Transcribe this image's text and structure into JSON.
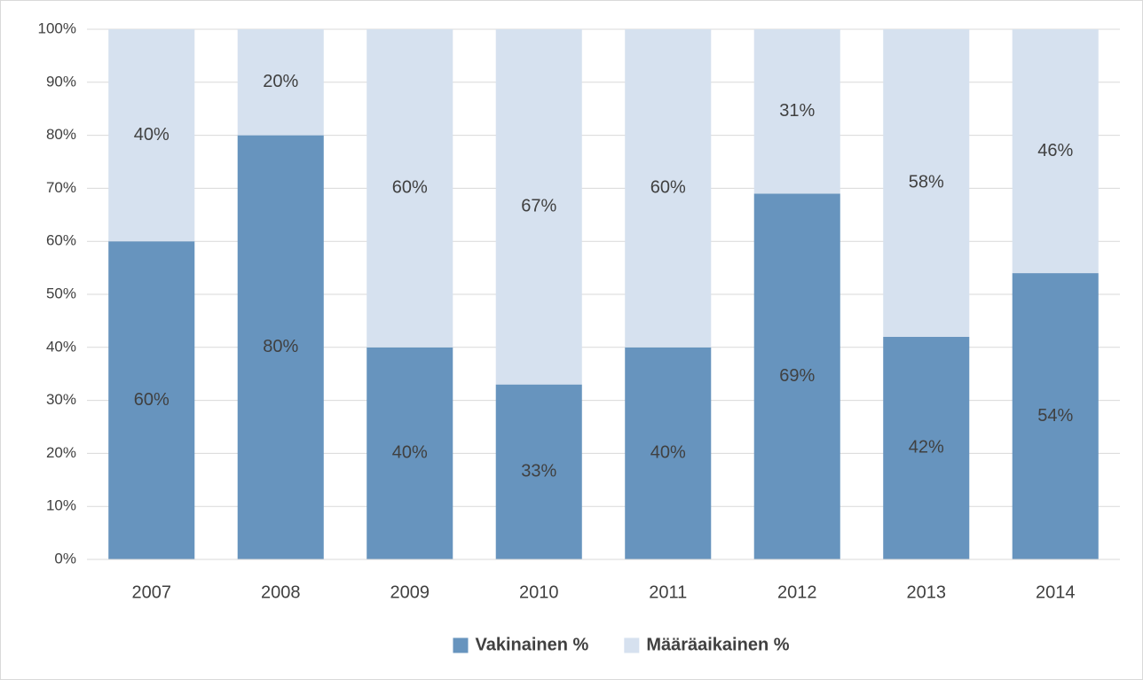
{
  "chart_data": {
    "type": "stacked_bar",
    "categories": [
      "2007",
      "2008",
      "2009",
      "2010",
      "2011",
      "2012",
      "2013",
      "2014"
    ],
    "series": [
      {
        "name": "Vakinainen %",
        "color": "#6794be",
        "values": [
          60,
          80,
          40,
          33,
          40,
          69,
          42,
          54
        ],
        "value_labels": [
          "60%",
          "80%",
          "40%",
          "33%",
          "40%",
          "69%",
          "42%",
          "54%"
        ]
      },
      {
        "name": "Määräaikainen %",
        "color": "#d6e1ef",
        "values": [
          40,
          20,
          60,
          67,
          60,
          31,
          58,
          46
        ],
        "value_labels": [
          "40%",
          "20%",
          "60%",
          "67%",
          "60%",
          "31%",
          "58%",
          "46%"
        ]
      }
    ],
    "ylim": [
      0,
      100
    ],
    "yticks": [
      {
        "value": 0,
        "label": "0%"
      },
      {
        "value": 10,
        "label": "10%"
      },
      {
        "value": 20,
        "label": "20%"
      },
      {
        "value": 30,
        "label": "30%"
      },
      {
        "value": 40,
        "label": "40%"
      },
      {
        "value": 50,
        "label": "50%"
      },
      {
        "value": 60,
        "label": "60%"
      },
      {
        "value": 70,
        "label": "70%"
      },
      {
        "value": 80,
        "label": "80%"
      },
      {
        "value": 90,
        "label": "90%"
      },
      {
        "value": 100,
        "label": "100%"
      }
    ],
    "grid": true,
    "legend": "bottom"
  }
}
